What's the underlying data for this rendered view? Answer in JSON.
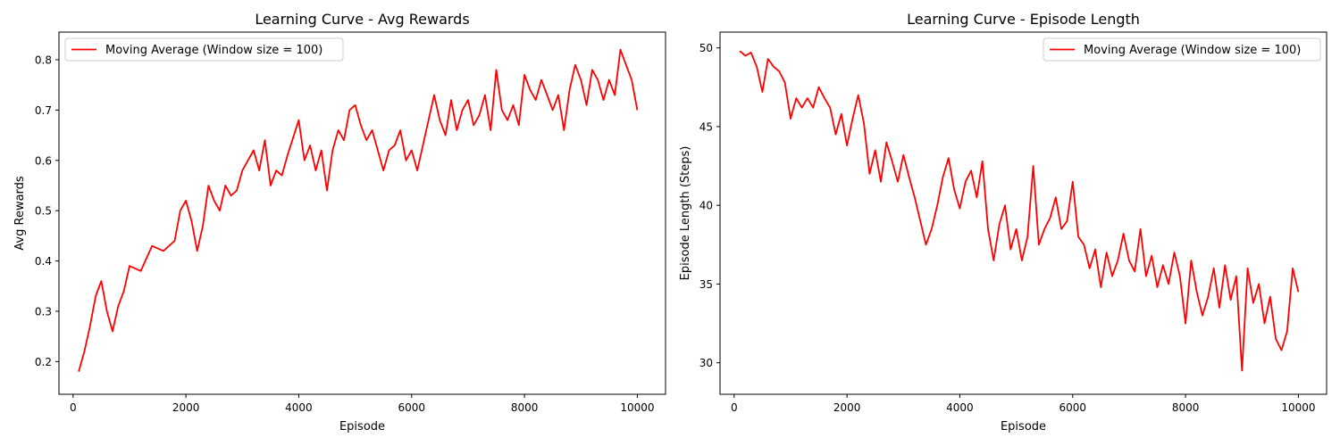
{
  "chart_data": [
    {
      "type": "line",
      "title": "Learning Curve - Avg Rewards",
      "xlabel": "Episode",
      "ylabel": "Avg Rewards",
      "xlim": [
        -250,
        10500
      ],
      "ylim": [
        0.135,
        0.855
      ],
      "xticks": [
        0,
        2000,
        4000,
        6000,
        8000,
        10000
      ],
      "yticks": [
        0.2,
        0.3,
        0.4,
        0.5,
        0.6,
        0.7,
        0.8
      ],
      "xtick_labels": [
        "0",
        "2000",
        "4000",
        "6000",
        "8000",
        "10000"
      ],
      "ytick_labels": [
        "0.2",
        "0.3",
        "0.4",
        "0.5",
        "0.6",
        "0.7",
        "0.8"
      ],
      "grid": false,
      "legend_position": "top-left",
      "series": [
        {
          "name": "Moving Average (Window size = 100)",
          "color": "#ff0000",
          "x": [
            100,
            200,
            300,
            400,
            500,
            600,
            700,
            800,
            900,
            1000,
            1200,
            1400,
            1600,
            1800,
            1900,
            2000,
            2100,
            2200,
            2300,
            2400,
            2500,
            2600,
            2700,
            2800,
            2900,
            3000,
            3100,
            3200,
            3300,
            3400,
            3500,
            3600,
            3700,
            3800,
            4000,
            4100,
            4200,
            4300,
            4400,
            4500,
            4600,
            4700,
            4800,
            4900,
            5000,
            5100,
            5200,
            5300,
            5400,
            5500,
            5600,
            5700,
            5800,
            5900,
            6000,
            6100,
            6200,
            6300,
            6400,
            6500,
            6600,
            6700,
            6800,
            6900,
            7000,
            7100,
            7200,
            7300,
            7400,
            7500,
            7600,
            7700,
            7800,
            7900,
            8000,
            8100,
            8200,
            8300,
            8400,
            8500,
            8600,
            8700,
            8800,
            8900,
            9000,
            9100,
            9200,
            9300,
            9400,
            9500,
            9600,
            9700,
            9800,
            9900,
            10000
          ],
          "values": [
            0.18,
            0.22,
            0.27,
            0.33,
            0.36,
            0.3,
            0.26,
            0.31,
            0.34,
            0.39,
            0.38,
            0.43,
            0.42,
            0.44,
            0.5,
            0.52,
            0.48,
            0.42,
            0.47,
            0.55,
            0.52,
            0.5,
            0.55,
            0.53,
            0.54,
            0.58,
            0.6,
            0.62,
            0.58,
            0.64,
            0.55,
            0.58,
            0.57,
            0.61,
            0.68,
            0.6,
            0.63,
            0.58,
            0.62,
            0.54,
            0.62,
            0.66,
            0.64,
            0.7,
            0.71,
            0.67,
            0.64,
            0.66,
            0.62,
            0.58,
            0.62,
            0.63,
            0.66,
            0.6,
            0.62,
            0.58,
            0.63,
            0.68,
            0.73,
            0.68,
            0.65,
            0.72,
            0.66,
            0.7,
            0.72,
            0.67,
            0.69,
            0.73,
            0.66,
            0.78,
            0.7,
            0.68,
            0.71,
            0.67,
            0.77,
            0.74,
            0.72,
            0.76,
            0.73,
            0.7,
            0.73,
            0.66,
            0.74,
            0.79,
            0.76,
            0.71,
            0.78,
            0.76,
            0.72,
            0.76,
            0.73,
            0.82,
            0.79,
            0.76,
            0.7
          ]
        }
      ]
    },
    {
      "type": "line",
      "title": "Learning Curve - Episode Length",
      "xlabel": "Episode",
      "ylabel": "Episode Length (Steps)",
      "xlim": [
        -250,
        10500
      ],
      "ylim": [
        28.0,
        51.0
      ],
      "xticks": [
        0,
        2000,
        4000,
        6000,
        8000,
        10000
      ],
      "yticks": [
        30,
        35,
        40,
        45,
        50
      ],
      "xtick_labels": [
        "0",
        "2000",
        "4000",
        "6000",
        "8000",
        "10000"
      ],
      "ytick_labels": [
        "30",
        "35",
        "40",
        "45",
        "50"
      ],
      "grid": false,
      "legend_position": "top-right",
      "series": [
        {
          "name": "Moving Average (Window size = 100)",
          "color": "#ff0000",
          "x": [
            100,
            200,
            300,
            400,
            500,
            600,
            700,
            800,
            900,
            1000,
            1100,
            1200,
            1300,
            1400,
            1500,
            1600,
            1700,
            1800,
            1900,
            2000,
            2100,
            2200,
            2300,
            2400,
            2500,
            2600,
            2700,
            2800,
            2900,
            3000,
            3100,
            3200,
            3300,
            3400,
            3500,
            3600,
            3700,
            3800,
            3900,
            4000,
            4100,
            4200,
            4300,
            4400,
            4500,
            4600,
            4700,
            4800,
            4900,
            5000,
            5100,
            5200,
            5300,
            5400,
            5500,
            5600,
            5700,
            5800,
            5900,
            6000,
            6100,
            6200,
            6300,
            6400,
            6500,
            6600,
            6700,
            6800,
            6900,
            7000,
            7100,
            7200,
            7300,
            7400,
            7500,
            7600,
            7700,
            7800,
            7900,
            8000,
            8100,
            8200,
            8300,
            8400,
            8500,
            8600,
            8700,
            8800,
            8900,
            9000,
            9100,
            9200,
            9300,
            9400,
            9500,
            9600,
            9700,
            9800,
            9900,
            10000
          ],
          "values": [
            49.8,
            49.5,
            49.7,
            48.8,
            47.2,
            49.3,
            48.8,
            48.5,
            47.8,
            45.5,
            46.8,
            46.2,
            46.8,
            46.2,
            47.5,
            46.8,
            46.2,
            44.5,
            45.8,
            43.8,
            45.5,
            47.0,
            45.2,
            42.0,
            43.5,
            41.5,
            44.0,
            42.8,
            41.5,
            43.2,
            41.8,
            40.5,
            39.0,
            37.5,
            38.5,
            40.0,
            41.8,
            43.0,
            41.0,
            39.8,
            41.5,
            42.2,
            40.5,
            42.8,
            38.5,
            36.5,
            38.8,
            40.0,
            37.2,
            38.5,
            36.5,
            38.0,
            42.5,
            37.5,
            38.5,
            39.2,
            40.5,
            38.5,
            39.0,
            41.5,
            38.0,
            37.5,
            36.0,
            37.2,
            34.8,
            37.0,
            35.5,
            36.5,
            38.2,
            36.5,
            35.8,
            38.5,
            35.5,
            36.8,
            34.8,
            36.2,
            35.0,
            37.0,
            35.5,
            32.5,
            36.5,
            34.5,
            33.0,
            34.2,
            36.0,
            33.5,
            36.2,
            34.0,
            35.5,
            29.5,
            36.0,
            33.8,
            35.0,
            32.5,
            34.2,
            31.5,
            30.8,
            32.0,
            36.0,
            34.5
          ]
        }
      ]
    }
  ]
}
